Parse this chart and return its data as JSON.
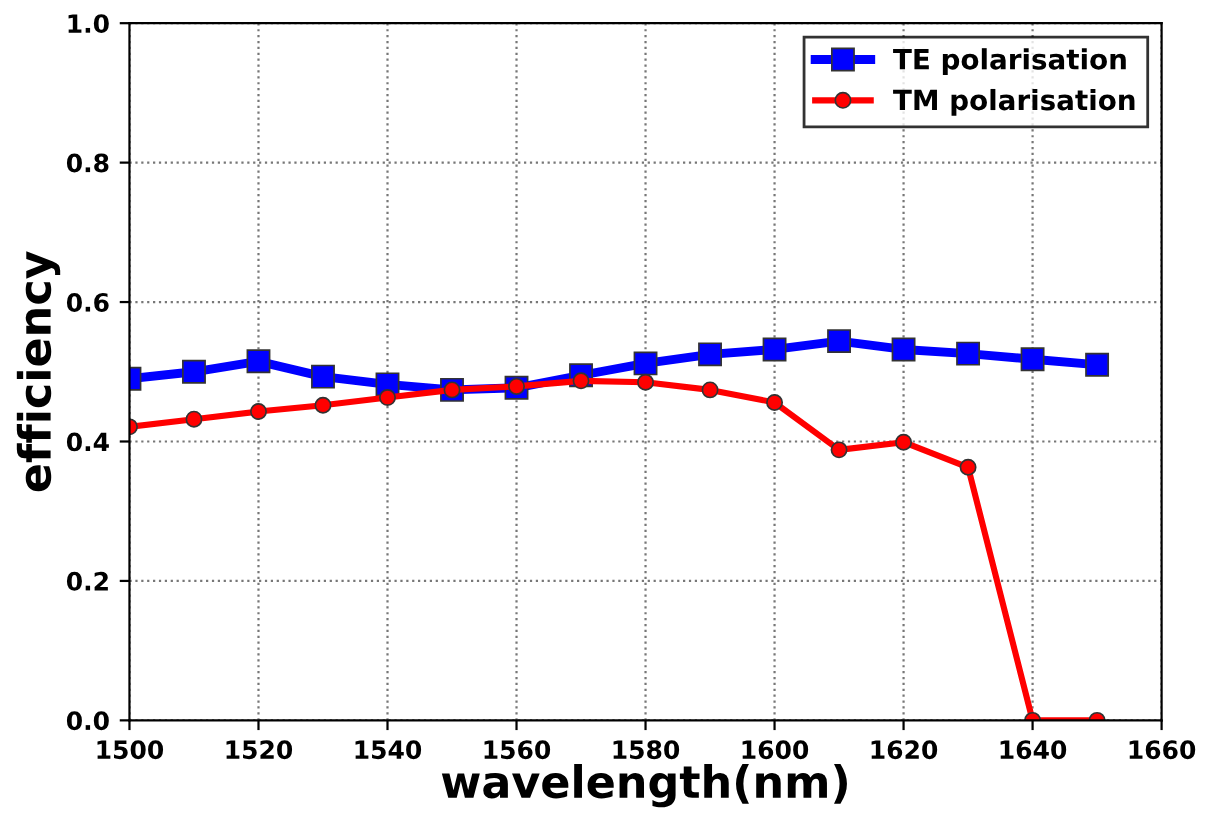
{
  "chart_data": {
    "type": "line",
    "xlabel": "wavelength(nm)",
    "ylabel": "efficiency",
    "x": [
      1500,
      1510,
      1520,
      1530,
      1540,
      1550,
      1560,
      1570,
      1580,
      1590,
      1600,
      1610,
      1620,
      1630,
      1640,
      1650
    ],
    "series": [
      {
        "name": "TE polarisation",
        "color": "#0000ff",
        "marker": "square",
        "values": [
          0.49,
          0.5,
          0.515,
          0.493,
          0.482,
          0.474,
          0.477,
          0.495,
          0.512,
          0.525,
          0.532,
          0.544,
          0.532,
          0.526,
          0.518,
          0.51
        ]
      },
      {
        "name": "TM polarisation",
        "color": "#ff0000",
        "marker": "circle",
        "values": [
          0.421,
          0.432,
          0.443,
          0.452,
          0.463,
          0.474,
          0.479,
          0.487,
          0.485,
          0.474,
          0.456,
          0.388,
          0.399,
          0.363,
          0.0,
          0.0
        ]
      }
    ],
    "xlim": [
      1500,
      1660
    ],
    "xticks": [
      1500,
      1520,
      1540,
      1560,
      1580,
      1600,
      1620,
      1640,
      1660
    ],
    "ylim": [
      0.0,
      1.0
    ],
    "yticks": [
      {
        "value": 0,
        "label": "0.0"
      },
      0.2,
      0.4,
      0.6,
      0.8,
      {
        "value": 1,
        "label": "1.0"
      }
    ],
    "grid": true,
    "legend": "top right",
    "line_style": "solid"
  }
}
